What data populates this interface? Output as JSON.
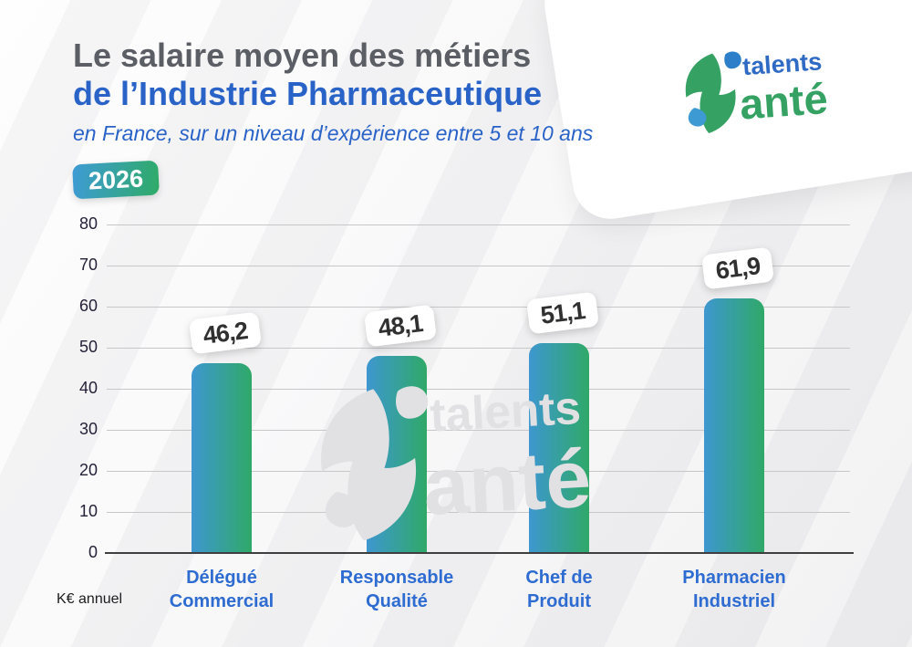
{
  "header": {
    "title_line1": "Le salaire moyen des métiers",
    "title_line2": "de l’Industrie Pharmaceutique",
    "subtitle": "en France, sur un niveau d’expérience entre 5 et 10 ans",
    "year_badge": "2026"
  },
  "logo": {
    "word1": "talents",
    "word2": "anté"
  },
  "chart_data": {
    "type": "bar",
    "title": "Le salaire moyen des métiers de l’Industrie Pharmaceutique",
    "subtitle": "en France, sur un niveau d’expérience entre 5 et 10 ans",
    "year": "2026",
    "unit_label": "K€ annuel",
    "ylabel": "K€ annuel",
    "categories": [
      "Délégué Commercial",
      "Responsable Qualité",
      "Chef de Produit",
      "Pharmacien Industriel"
    ],
    "category_label_lines": [
      [
        "Délégué",
        "Commercial"
      ],
      [
        "Responsable",
        "Qualité"
      ],
      [
        "Chef de",
        "Produit"
      ],
      [
        "Pharmacien",
        "Industriel"
      ]
    ],
    "values": [
      46.2,
      48.1,
      51.1,
      61.9
    ],
    "value_labels": [
      "46,2",
      "48,1",
      "51,1",
      "61,9"
    ],
    "ylim": [
      0,
      80
    ],
    "yticks": [
      0,
      10,
      20,
      30,
      40,
      50,
      60,
      70,
      80
    ],
    "grid": true,
    "legend_position": "none",
    "bar_gradient": [
      "#3e97d0",
      "#2fa968"
    ]
  },
  "colors": {
    "title_gray": "#5b5e64",
    "accent_blue": "#2a63c8",
    "category_blue": "#2e6cd1",
    "logo_green": "#35a264",
    "logo_blue": "#2f6ac5",
    "gridline": "#c7c7ca",
    "badge_gradient": [
      "#3e9bd6",
      "#2fab66"
    ]
  }
}
